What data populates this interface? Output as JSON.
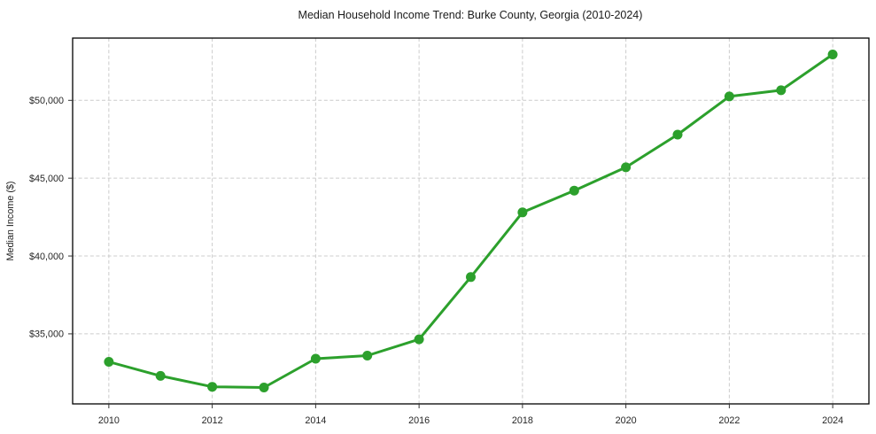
{
  "chart_data": {
    "type": "line",
    "title": "Median Household Income Trend: Burke County, Georgia (2010-2024)",
    "xlabel": "",
    "ylabel": "Median Income ($)",
    "x": [
      2010,
      2011,
      2012,
      2013,
      2014,
      2015,
      2016,
      2017,
      2018,
      2019,
      2020,
      2021,
      2022,
      2023,
      2024
    ],
    "series": [
      {
        "name": "Median Household Income",
        "values": [
          33200,
          32300,
          31600,
          31550,
          33400,
          33600,
          34650,
          38650,
          42800,
          44200,
          45700,
          47800,
          50250,
          50650,
          52950
        ]
      }
    ],
    "x_ticks": [
      2010,
      2012,
      2014,
      2016,
      2018,
      2020,
      2022,
      2024
    ],
    "x_tick_labels": [
      "2010",
      "2012",
      "2014",
      "2016",
      "2018",
      "2020",
      "2022",
      "2024"
    ],
    "y_ticks": [
      35000,
      40000,
      45000,
      50000
    ],
    "y_tick_labels": [
      "$35,000",
      "$40,000",
      "$45,000",
      "$50,000"
    ],
    "xlim": [
      2009.3,
      2024.7
    ],
    "ylim": [
      30500,
      54000
    ],
    "grid": true,
    "legend": false,
    "line_color": "#2ca02c",
    "marker": "circle",
    "marker_radius": 5.5,
    "grid_color": "#cccccc",
    "background": "#ffffff"
  }
}
